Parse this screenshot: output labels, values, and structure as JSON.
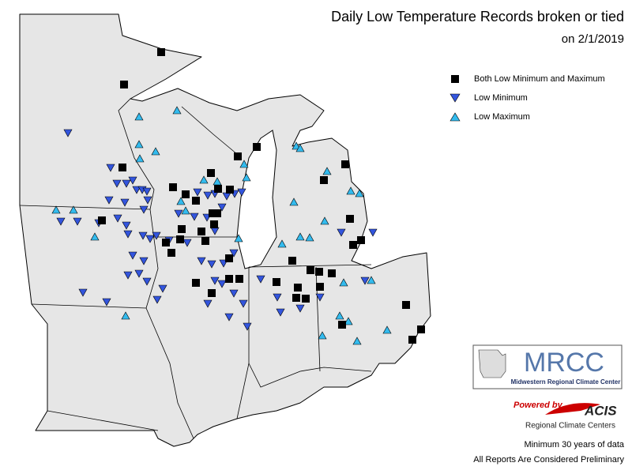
{
  "title": "Daily Low Temperature Records broken or tied",
  "date": "on 2/1/2019",
  "legend": [
    "Both Low Minimum and Maximum",
    "Low Minimum",
    "Low Maximum"
  ],
  "logo": {
    "name": "MRCC",
    "subtitle": "Midwestern Regional Climate Center"
  },
  "acis": {
    "powered_by": "Powered by",
    "name": "ACIS",
    "subtitle": "Regional Climate Centers"
  },
  "notes": [
    "Minimum 30 years of data",
    "All Reports Are Considered Preliminary"
  ]
}
